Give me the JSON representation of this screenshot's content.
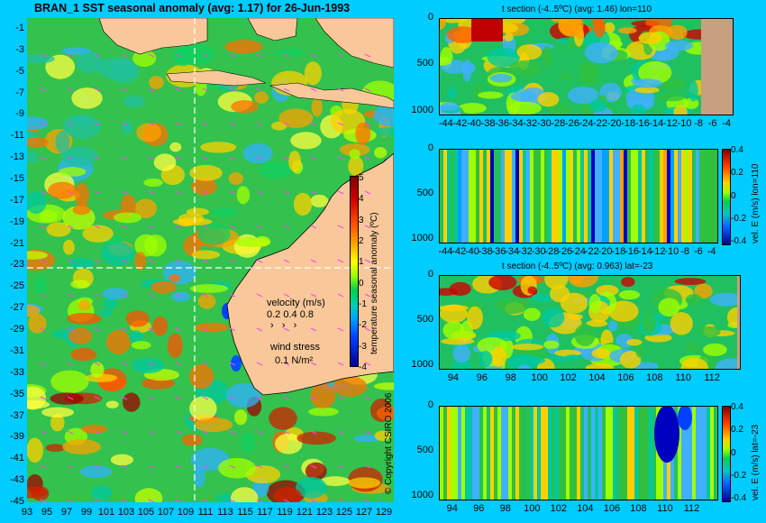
{
  "main_map": {
    "title": "BRAN_1 SST seasonal anomaly (avg: 1.17) for 26-Jun-1993",
    "lat_ticks": [
      "-1",
      "-3",
      "-5",
      "-7",
      "-9",
      "-11",
      "-13",
      "-15",
      "-17",
      "-19",
      "-21",
      "-23",
      "-25",
      "-27",
      "-29",
      "-31",
      "-33",
      "-35",
      "-37",
      "-39",
      "-41",
      "-43",
      "-45"
    ],
    "lon_ticks": [
      "93",
      "95",
      "97",
      "99",
      "101",
      "103",
      "105",
      "107",
      "109",
      "111",
      "113",
      "115",
      "117",
      "119",
      "121",
      "123",
      "125",
      "127",
      "129"
    ],
    "colorbar": {
      "label": "temperature seasonal anomaly (ºC)",
      "ticks": [
        "5",
        "4",
        "3",
        "2",
        "1",
        "0",
        "-1",
        "-2",
        "-3",
        "-4"
      ]
    },
    "velocity_legend": {
      "title": "velocity (m/s)",
      "values": "0.2 0.4 0.8"
    },
    "wind_legend": {
      "title": "wind stress",
      "value": "0.1 N/m²"
    },
    "copyright": "© Copyright CSIRO 2006"
  },
  "panels": [
    {
      "id": "t-section-lon110",
      "title": "t section (-4..5ºC) (avg: 1.46) lon=110",
      "y_ticks": [
        "0",
        "500",
        "1000"
      ],
      "x_ticks": [
        "-44",
        "-42",
        "-40",
        "-38",
        "-36",
        "-34",
        "-32",
        "-30",
        "-28",
        "-26",
        "-24",
        "-22",
        "-20",
        "-18",
        "-16",
        "-14",
        "-12",
        "-10",
        "-8",
        "-6",
        "-4"
      ]
    },
    {
      "id": "vel-e-lon110",
      "title": "",
      "y_ticks": [
        "0",
        "500",
        "1000"
      ],
      "x_ticks": [
        "-44",
        "-42",
        "-40",
        "-38",
        "-36",
        "-34",
        "-32",
        "-30",
        "-28",
        "-26",
        "-24",
        "-22",
        "-20",
        "-18",
        "-16",
        "-14",
        "-12",
        "-10",
        "-8",
        "-6",
        "-4"
      ],
      "colorbar": {
        "label": "vel. E (m/s) lon=110",
        "ticks": [
          "0.4",
          "0.2",
          "0",
          "-0.2",
          "-0.4"
        ]
      }
    },
    {
      "id": "t-section-lat-23",
      "title": "t section (-4..5ºC) (avg: 0.963) lat=-23",
      "y_ticks": [
        "0",
        "500",
        "1000"
      ],
      "x_ticks": [
        "94",
        "96",
        "98",
        "100",
        "102",
        "104",
        "106",
        "108",
        "110",
        "112"
      ]
    },
    {
      "id": "vel-e-lat-23",
      "title": "",
      "y_ticks": [
        "0",
        "500",
        "1000"
      ],
      "x_ticks": [
        "94",
        "96",
        "98",
        "100",
        "102",
        "104",
        "106",
        "108",
        "110",
        "112"
      ],
      "colorbar": {
        "label": "vel. E (m/s) lat=-23",
        "ticks": [
          "0.4",
          "0.2",
          "0",
          "-0.2",
          "-0.4"
        ]
      }
    }
  ],
  "chart_data": [
    {
      "type": "heatmap",
      "title": "BRAN_1 SST seasonal anomaly (avg: 1.17) for 26-Jun-1993",
      "x_range": [
        93,
        130
      ],
      "y_range": [
        -45,
        0
      ],
      "color_range": [
        -4,
        5
      ],
      "colorbar_label": "temperature seasonal anomaly (ºC)",
      "colors": {
        "land": "#f8c89a",
        "background": "#00ccff"
      }
    },
    {
      "type": "heatmap",
      "title": "t section (-4..5ºC) (avg: 1.46) lon=110",
      "x_range": [
        -45,
        -3
      ],
      "y_range": [
        0,
        1050
      ],
      "color_range": [
        -4,
        5
      ]
    },
    {
      "type": "heatmap",
      "x_range": [
        -45,
        -3
      ],
      "y_range": [
        0,
        1050
      ],
      "color_range": [
        -0.4,
        0.4
      ],
      "colorbar_label": "vel. E (m/s) lon=110"
    },
    {
      "type": "heatmap",
      "title": "t section (-4..5ºC) (avg: 0.963) lat=-23",
      "x_range": [
        93,
        114
      ],
      "y_range": [
        0,
        1050
      ],
      "color_range": [
        -4,
        5
      ]
    },
    {
      "type": "heatmap",
      "x_range": [
        93,
        114
      ],
      "y_range": [
        0,
        1050
      ],
      "color_range": [
        -0.4,
        0.4
      ],
      "colorbar_label": "vel. E (m/s) lat=-23"
    }
  ]
}
